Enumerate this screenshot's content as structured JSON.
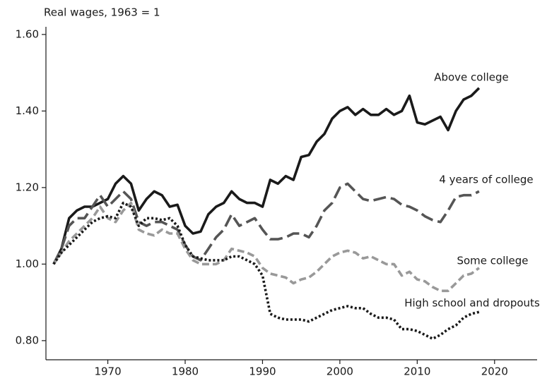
{
  "chart_data": {
    "type": "line",
    "y_axis_label": "Real wages, 1963 = 1",
    "x": [
      1963,
      1964,
      1965,
      1966,
      1967,
      1968,
      1969,
      1970,
      1971,
      1972,
      1973,
      1974,
      1975,
      1976,
      1977,
      1978,
      1979,
      1980,
      1981,
      1982,
      1983,
      1984,
      1985,
      1986,
      1987,
      1988,
      1989,
      1990,
      1991,
      1992,
      1993,
      1994,
      1995,
      1996,
      1997,
      1998,
      1999,
      2000,
      2001,
      2002,
      2003,
      2004,
      2005,
      2006,
      2007,
      2008,
      2009,
      2010,
      2011,
      2012,
      2013,
      2014,
      2015,
      2016,
      2017,
      2018
    ],
    "series": [
      {
        "name": "Above college",
        "color": "#1a1a1a",
        "values": [
          1.0,
          1.04,
          1.12,
          1.14,
          1.15,
          1.15,
          1.16,
          1.17,
          1.21,
          1.23,
          1.21,
          1.14,
          1.17,
          1.19,
          1.18,
          1.15,
          1.155,
          1.1,
          1.08,
          1.085,
          1.13,
          1.15,
          1.16,
          1.19,
          1.17,
          1.16,
          1.16,
          1.15,
          1.22,
          1.21,
          1.23,
          1.22,
          1.28,
          1.285,
          1.32,
          1.34,
          1.38,
          1.4,
          1.41,
          1.39,
          1.405,
          1.39,
          1.39,
          1.405,
          1.39,
          1.4,
          1.44,
          1.37,
          1.365,
          1.375,
          1.385,
          1.35,
          1.4,
          1.43,
          1.44,
          1.46
        ]
      },
      {
        "name": "4 years of college",
        "color": "#555555",
        "values": [
          1.0,
          1.04,
          1.1,
          1.12,
          1.12,
          1.15,
          1.18,
          1.15,
          1.17,
          1.19,
          1.17,
          1.11,
          1.1,
          1.11,
          1.11,
          1.1,
          1.09,
          1.05,
          1.02,
          1.01,
          1.04,
          1.07,
          1.09,
          1.13,
          1.1,
          1.11,
          1.12,
          1.09,
          1.065,
          1.065,
          1.07,
          1.08,
          1.08,
          1.07,
          1.1,
          1.14,
          1.16,
          1.2,
          1.21,
          1.19,
          1.17,
          1.165,
          1.17,
          1.175,
          1.17,
          1.155,
          1.15,
          1.14,
          1.125,
          1.115,
          1.11,
          1.14,
          1.175,
          1.18,
          1.18,
          1.19
        ]
      },
      {
        "name": "Some college",
        "color": "#999999",
        "values": [
          1.0,
          1.03,
          1.06,
          1.08,
          1.1,
          1.12,
          1.15,
          1.12,
          1.11,
          1.14,
          1.16,
          1.09,
          1.08,
          1.075,
          1.09,
          1.08,
          1.08,
          1.04,
          1.01,
          1.0,
          1.0,
          1.0,
          1.01,
          1.04,
          1.035,
          1.03,
          1.02,
          0.99,
          0.975,
          0.97,
          0.965,
          0.95,
          0.96,
          0.965,
          0.98,
          1.0,
          1.02,
          1.03,
          1.035,
          1.03,
          1.015,
          1.02,
          1.01,
          1.0,
          1.0,
          0.97,
          0.98,
          0.96,
          0.955,
          0.94,
          0.93,
          0.93,
          0.95,
          0.97,
          0.975,
          0.99
        ]
      },
      {
        "name": "High school and dropouts",
        "color": "#1a1a1a",
        "values": [
          1.0,
          1.03,
          1.05,
          1.07,
          1.09,
          1.11,
          1.12,
          1.125,
          1.12,
          1.16,
          1.15,
          1.1,
          1.12,
          1.12,
          1.115,
          1.12,
          1.1,
          1.05,
          1.02,
          1.015,
          1.01,
          1.01,
          1.01,
          1.02,
          1.02,
          1.01,
          1.0,
          0.97,
          0.87,
          0.86,
          0.855,
          0.855,
          0.855,
          0.85,
          0.86,
          0.87,
          0.88,
          0.885,
          0.89,
          0.885,
          0.885,
          0.87,
          0.86,
          0.86,
          0.855,
          0.83,
          0.83,
          0.825,
          0.815,
          0.805,
          0.815,
          0.83,
          0.84,
          0.86,
          0.87,
          0.875
        ]
      }
    ],
    "xlim": [
      1962,
      2025.5
    ],
    "ylim": [
      0.75,
      1.62
    ],
    "xticks": [
      1970,
      1980,
      1990,
      2000,
      2010,
      2020
    ],
    "yticks": [
      {
        "value": 0.8,
        "label": "0.80"
      },
      {
        "value": 1.0,
        "label": "1.00"
      },
      {
        "value": 1.2,
        "label": "1.20"
      },
      {
        "value": 1.4,
        "label": "1.40"
      },
      {
        "value": 1.6,
        "label": "1.60"
      }
    ]
  }
}
